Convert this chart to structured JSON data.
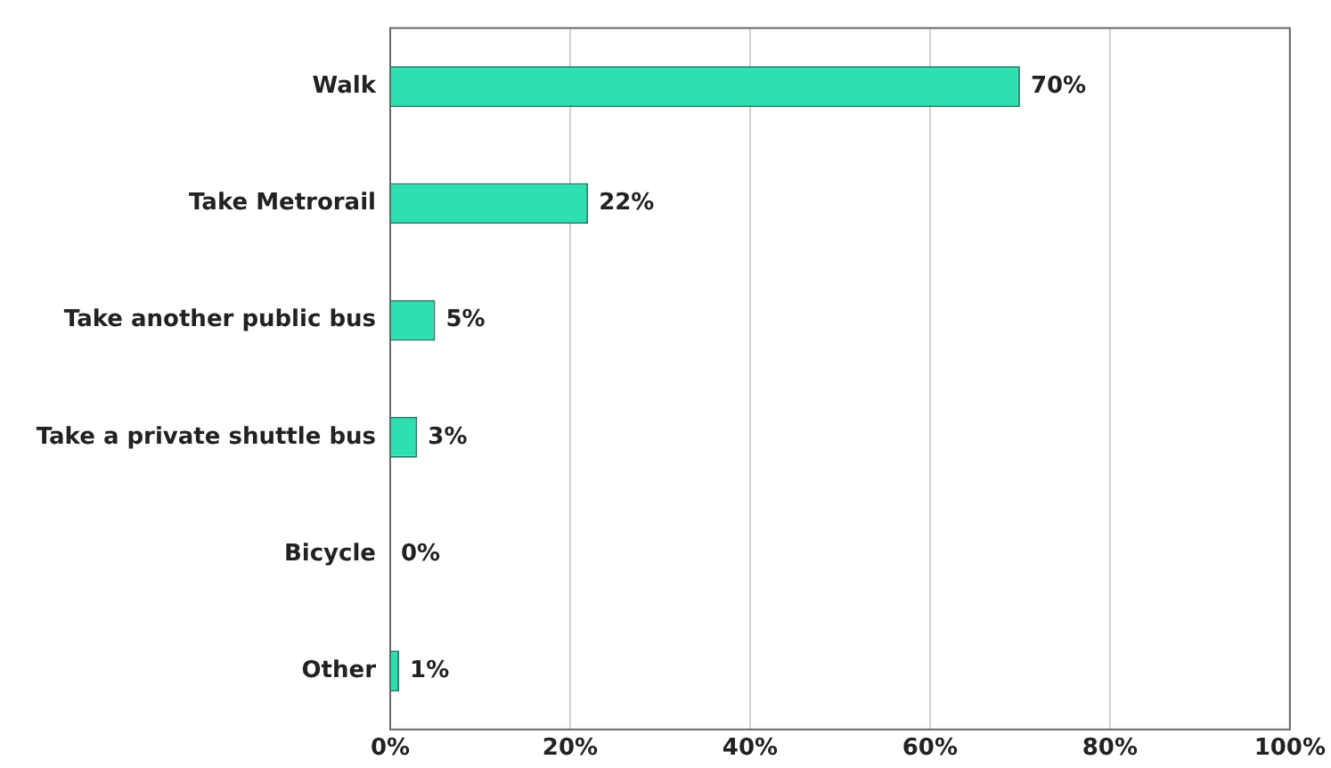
{
  "chart_data": {
    "type": "bar",
    "orientation": "horizontal",
    "categories": [
      "Walk",
      "Take Metrorail",
      "Take another public bus",
      "Take a private shuttle bus",
      "Bicycle",
      "Other"
    ],
    "values": [
      70,
      22,
      5,
      3,
      0,
      1
    ],
    "value_labels": [
      "70%",
      "22%",
      "5%",
      "3%",
      "0%",
      "1%"
    ],
    "color": "#2de0b0",
    "xlim": [
      0,
      100
    ],
    "xticks": [
      {
        "value": 0,
        "label": "0%"
      },
      {
        "value": 20,
        "label": "20%"
      },
      {
        "value": 40,
        "label": "40%"
      },
      {
        "value": 60,
        "label": "60%"
      },
      {
        "value": 80,
        "label": "80%"
      },
      {
        "value": 100,
        "label": "100%"
      }
    ],
    "grid": "x",
    "legend": false
  }
}
